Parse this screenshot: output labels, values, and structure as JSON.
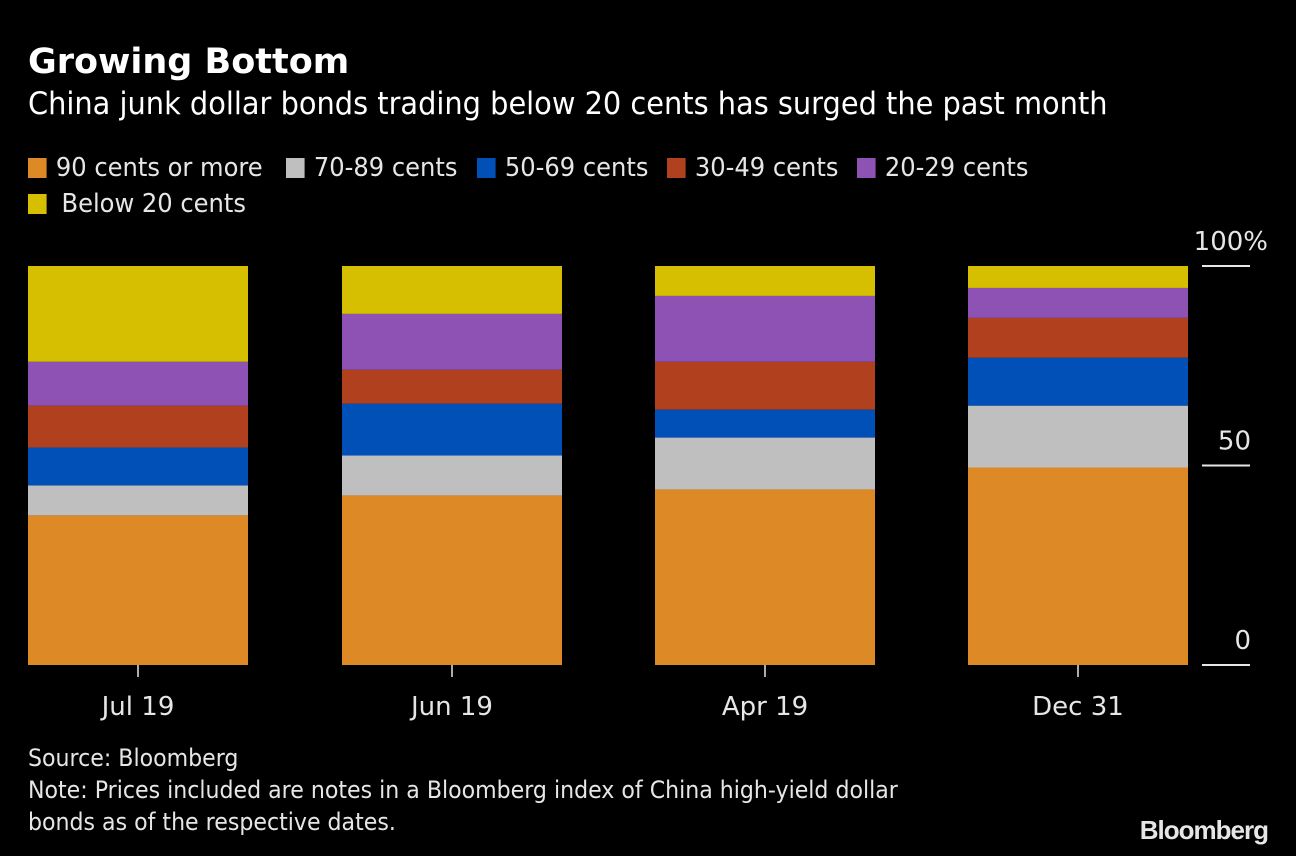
{
  "chart_data": {
    "type": "bar",
    "stacked": true,
    "title": "Growing Bottom",
    "subtitle": "China junk dollar bonds trading below 20 cents has surged the past month",
    "categories": [
      "Jul 19",
      "Jun 19",
      "Apr 19",
      "Dec 31"
    ],
    "series": [
      {
        "name": "90 cents or more",
        "color": "#DD8A26",
        "values": [
          37.5,
          42.5,
          44.0,
          49.5
        ]
      },
      {
        "name": "70-89 cents",
        "color": "#BFBFBF",
        "values": [
          7.5,
          10.0,
          13.0,
          15.5
        ]
      },
      {
        "name": "50-69 cents",
        "color": "#0050B8",
        "values": [
          9.5,
          13.0,
          7.0,
          12.0
        ]
      },
      {
        "name": "30-49 cents",
        "color": "#B0401E",
        "values": [
          10.5,
          8.5,
          12.0,
          10.0
        ]
      },
      {
        "name": "20-29 cents",
        "color": "#8E52B5",
        "values": [
          11.0,
          14.0,
          16.5,
          7.5
        ]
      },
      {
        "name": "Below 20 cents",
        "color": "#D6BE00",
        "values": [
          24.0,
          12.0,
          7.5,
          5.5
        ]
      }
    ],
    "xlabel": "",
    "ylabel": "",
    "ylim": [
      0,
      100
    ],
    "yticks": [
      {
        "value": 0,
        "label": "0"
      },
      {
        "value": 50,
        "label": "50"
      },
      {
        "value": 100,
        "label": "100%"
      }
    ],
    "legend_position": "top-left",
    "grid": false
  },
  "legend": {
    "rows": [
      [
        0,
        1,
        2,
        3,
        4
      ],
      [
        5
      ]
    ]
  },
  "footer": {
    "source": "Source: Bloomberg",
    "note_line1": "Note: Prices included are notes in a Bloomberg index of China high-yield dollar",
    "note_line2": "bonds as of the respective dates."
  },
  "logo": "Bloomberg"
}
